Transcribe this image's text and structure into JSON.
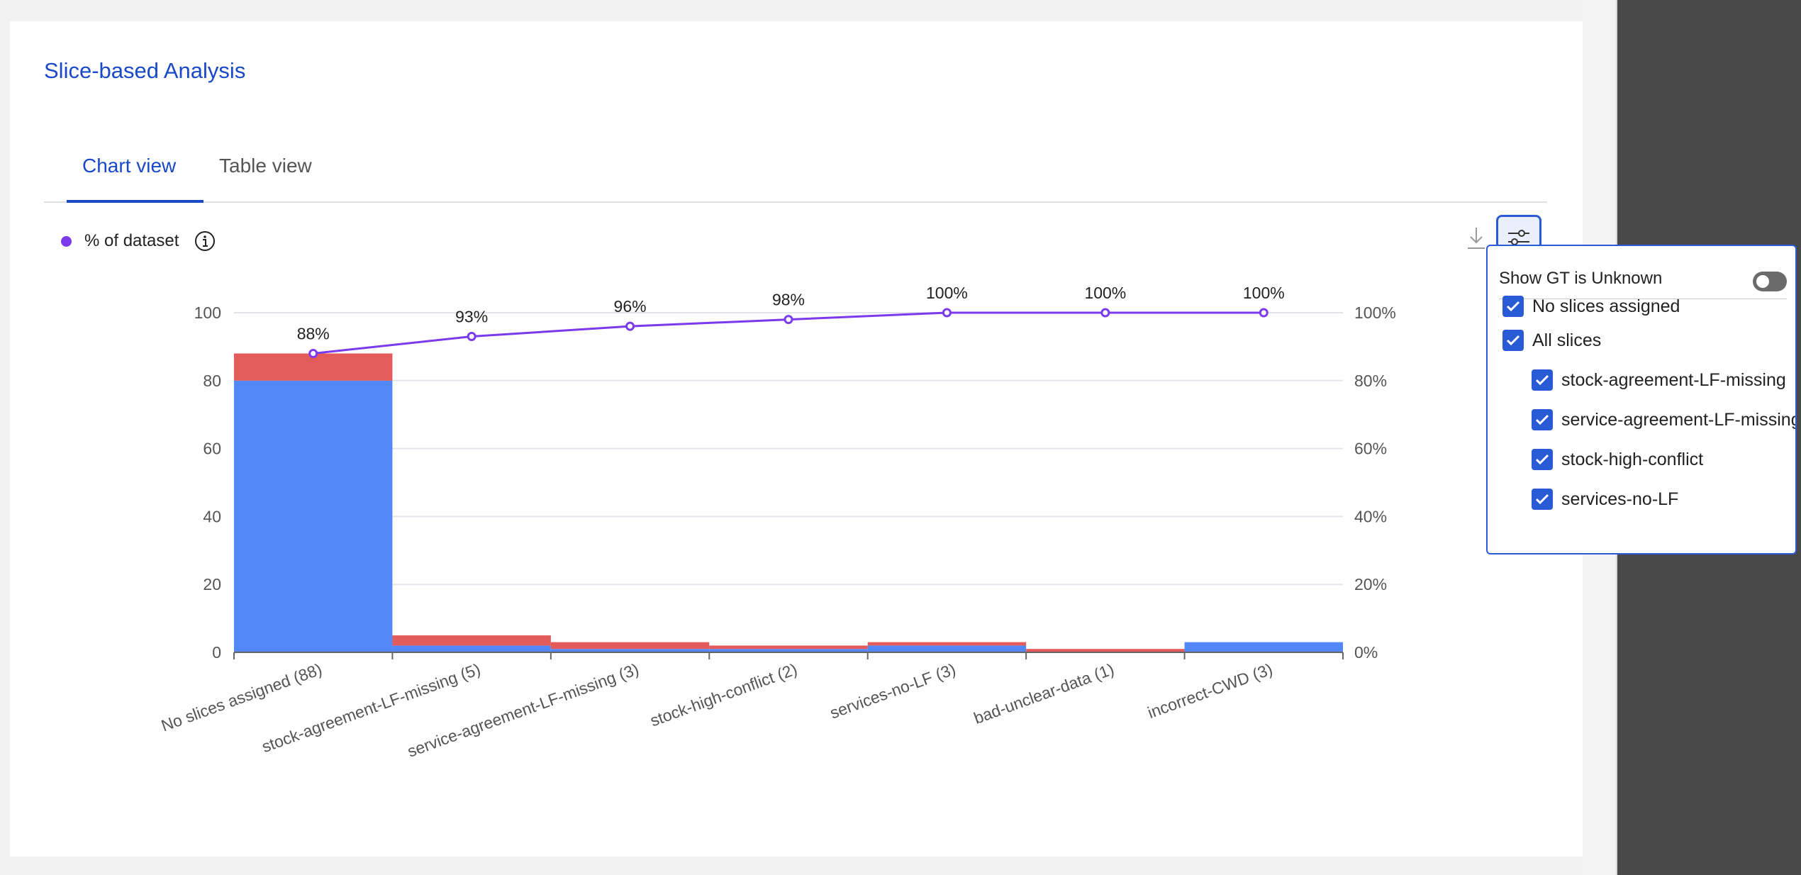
{
  "header": {
    "title": "Slice-based Analysis"
  },
  "tabs": [
    {
      "label": "Chart view",
      "active": true
    },
    {
      "label": "Table view",
      "active": false
    }
  ],
  "legend": {
    "label": "% of dataset",
    "color": "#7c3aed"
  },
  "icons": {
    "info": "info-icon",
    "download": "download-icon",
    "settings": "sliders-icon",
    "checkbox": "check-icon"
  },
  "colors": {
    "accent": "#1a49c7",
    "bar_primary": "#5287f7",
    "bar_secondary": "#e45b5b",
    "line": "#7c3aed"
  },
  "chart_data": {
    "type": "bar",
    "categories": [
      "No slices assigned (88)",
      "stock-agreement-LF-missing (5)",
      "service-agreement-LF-missing (3)",
      "stock-high-conflict (2)",
      "services-no-LF (3)",
      "bad-unclear-data (1)",
      "incorrect-CWD (3)"
    ],
    "series": [
      {
        "type": "bar",
        "stack": "count",
        "color": "#5287f7",
        "values": [
          80,
          2,
          1,
          1,
          2,
          0,
          3
        ]
      },
      {
        "type": "bar",
        "stack": "count",
        "color": "#e45b5b",
        "values": [
          8,
          3,
          2,
          1,
          1,
          1,
          0
        ]
      },
      {
        "name": "% of dataset",
        "type": "line",
        "axis": "right",
        "color": "#7c3aed",
        "values": [
          88,
          93,
          96,
          98,
          100,
          100,
          100
        ]
      }
    ],
    "point_labels": [
      "88%",
      "93%",
      "96%",
      "98%",
      "100%",
      "100%",
      "100%"
    ],
    "y_ticks": [
      "0",
      "20",
      "40",
      "60",
      "80",
      "100"
    ],
    "y2_ticks": [
      "0%",
      "20%",
      "40%",
      "60%",
      "80%",
      "100%"
    ],
    "ylim": [
      0,
      100
    ],
    "y2lim": [
      0,
      100
    ],
    "grid": true,
    "legend_position": "top-left"
  },
  "filter_panel": {
    "toggle_label": "Show GT is Unknown",
    "toggle_on": false,
    "items": [
      {
        "label": "No slices assigned",
        "checked": true,
        "level": 0
      },
      {
        "label": "All slices",
        "checked": true,
        "level": 0
      },
      {
        "label": "stock-agreement-LF-missing",
        "checked": true,
        "level": 1
      },
      {
        "label": "service-agreement-LF-missing",
        "checked": true,
        "level": 1
      },
      {
        "label": "stock-high-conflict",
        "checked": true,
        "level": 1
      },
      {
        "label": "services-no-LF",
        "checked": true,
        "level": 1
      }
    ]
  }
}
